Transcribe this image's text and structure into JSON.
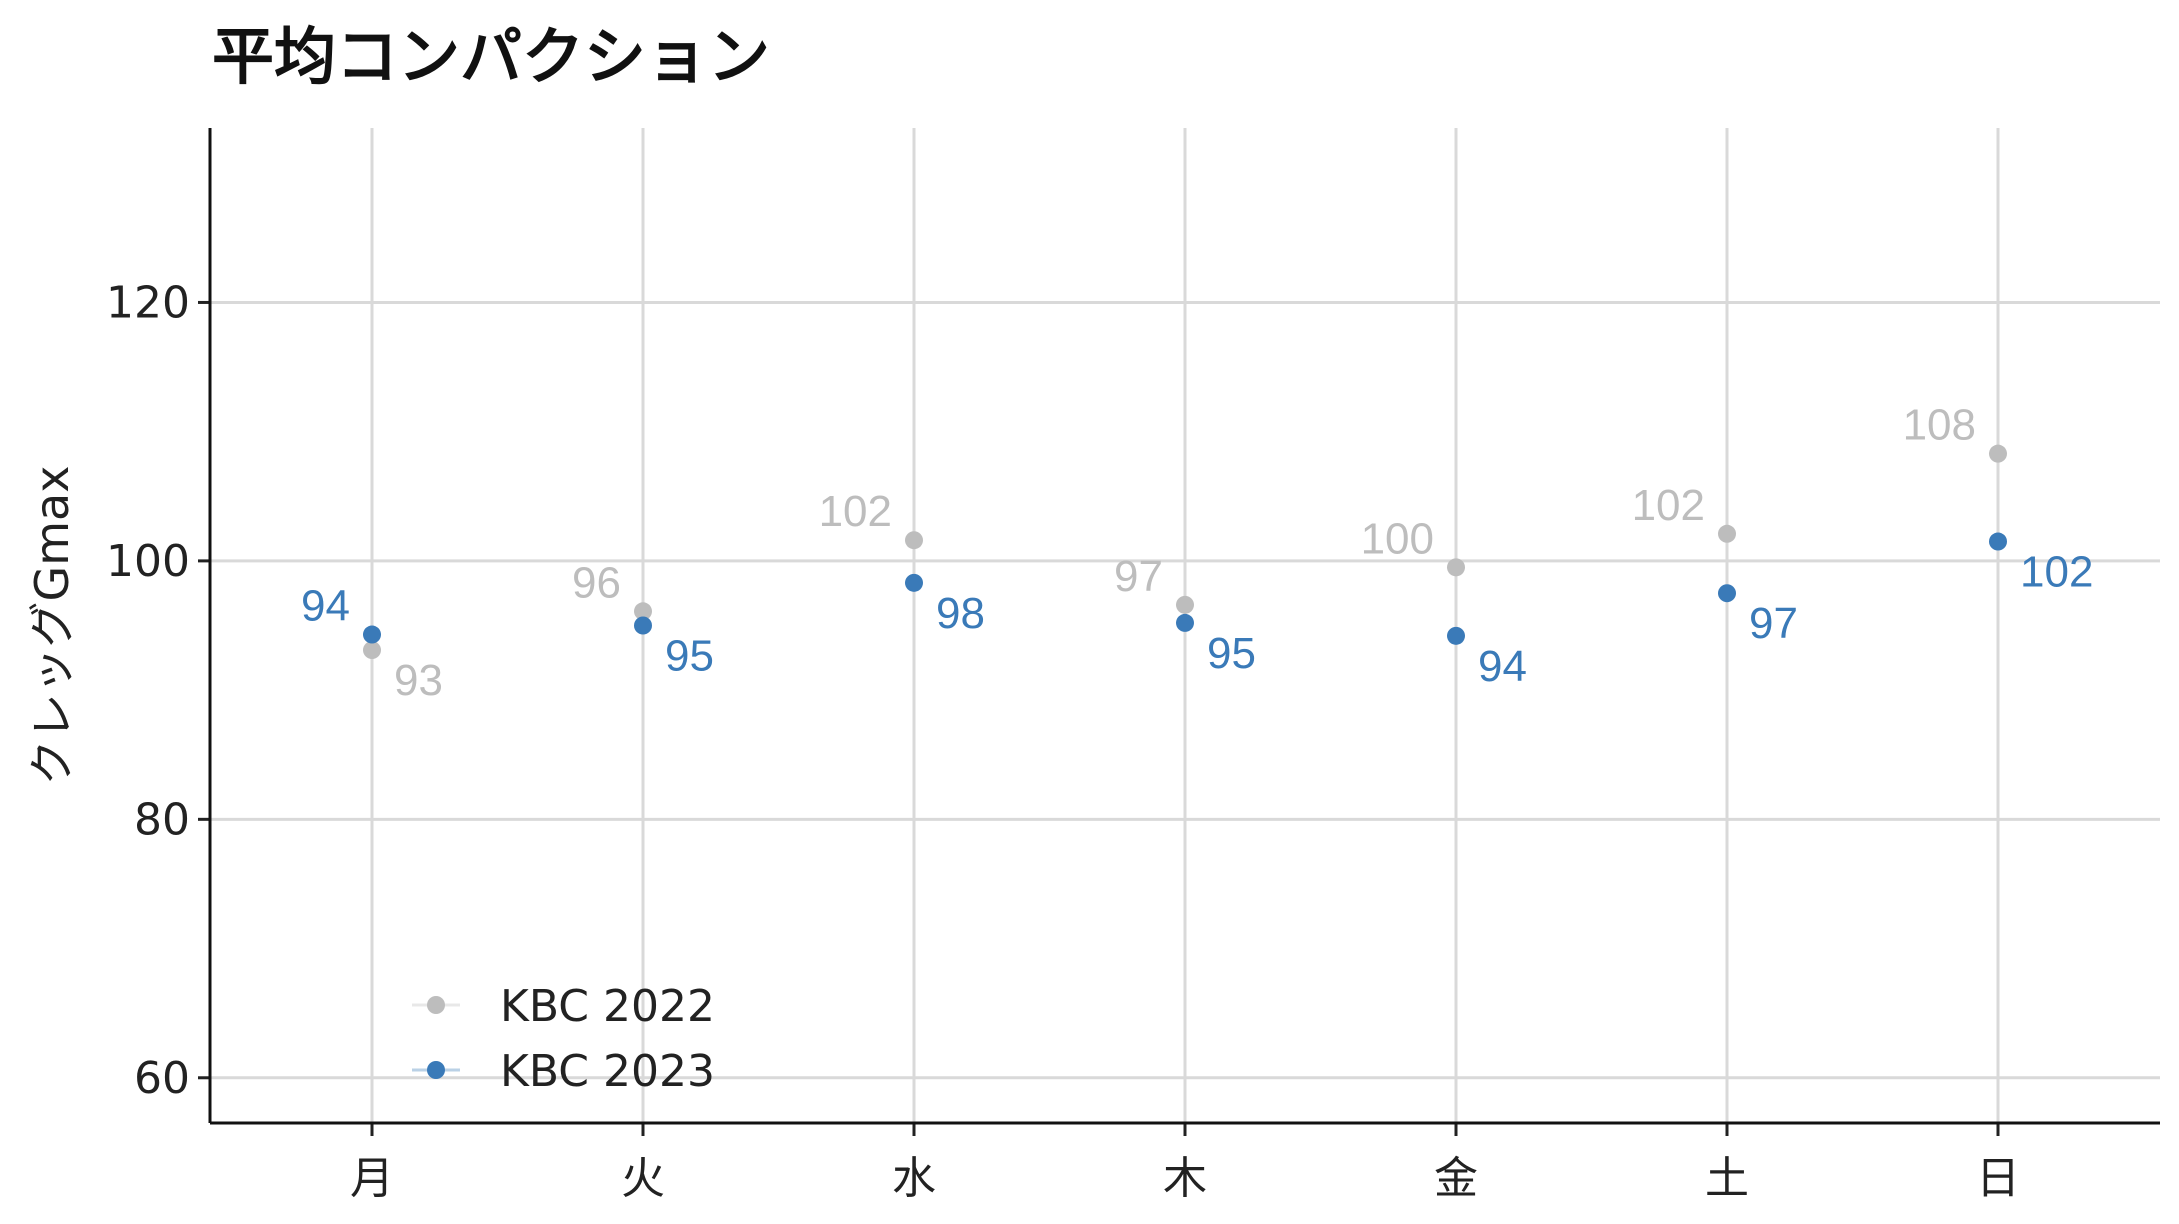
{
  "chart_data": {
    "type": "scatter",
    "title": "平均コンパクション",
    "xlabel": "",
    "ylabel": "クレッグGmax",
    "categories": [
      "月",
      "火",
      "水",
      "木",
      "金",
      "土",
      "日"
    ],
    "yticks": [
      60,
      80,
      100,
      120
    ],
    "ylim": [
      56.5,
      133.5
    ],
    "grid": true,
    "legend_position": "bottom-left",
    "series": [
      {
        "name": "KBC 2022",
        "color": "#bdbdbd",
        "values": [
          93.1,
          96.1,
          101.6,
          96.6,
          99.5,
          102.1,
          108.3
        ],
        "labels": [
          "93",
          "96",
          "102",
          "97",
          "100",
          "102",
          "108"
        ]
      },
      {
        "name": "KBC 2023",
        "color": "#3a7ab8",
        "values": [
          94.3,
          95.0,
          98.3,
          95.2,
          94.2,
          97.5,
          101.5
        ],
        "labels": [
          "94",
          "95",
          "98",
          "95",
          "94",
          "97",
          "102"
        ]
      }
    ]
  }
}
